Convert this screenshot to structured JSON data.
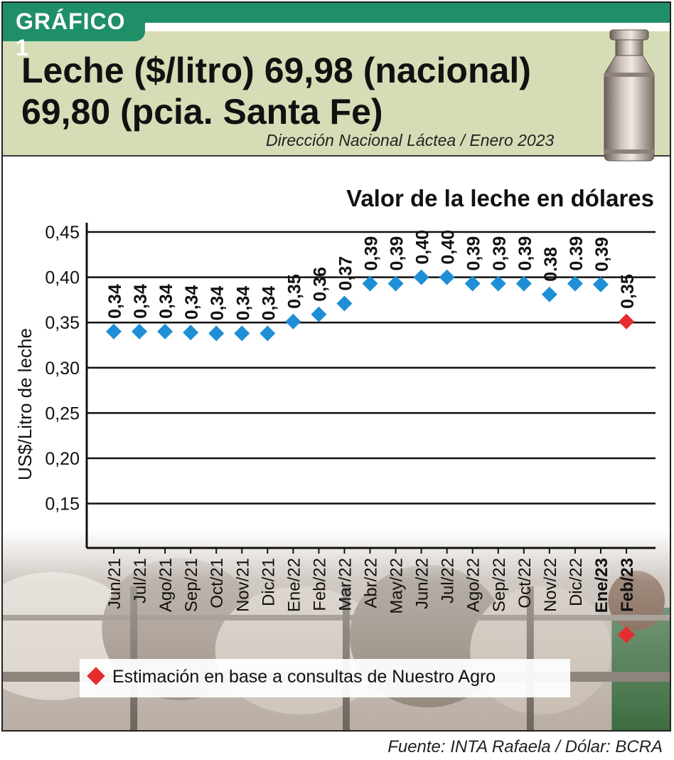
{
  "tag": "GRÁFICO 1",
  "headline_line1": "Leche ($/litro) 69,98 (nacional)",
  "headline_line2": "69,80 (pcia. Santa Fe)",
  "subtitle": "Dirección Nacional Láctea / Enero 2023",
  "source": "Fuente: INTA Rafaela / Dólar: BCRA",
  "colors": {
    "header_bg": "#d6ddb6",
    "accent_green": "#1f8f68",
    "point_blue": "#1e8fd6",
    "estimate_red": "#e52d2d"
  },
  "chart_data": {
    "type": "scatter",
    "title": "Valor de la leche en dólares",
    "ylabel": "US$/Litro de leche",
    "xlabel": "",
    "ylim": [
      0.1,
      0.45
    ],
    "grid": true,
    "y_ticks": [
      "0,45",
      "0,40",
      "0,35",
      "0,30",
      "0,25",
      "0,20",
      "0,15"
    ],
    "y_tick_values": [
      0.45,
      0.4,
      0.35,
      0.3,
      0.25,
      0.2,
      0.15
    ],
    "categories": [
      "Jun/21",
      "Jul/21",
      "Ago/21",
      "Sep/21",
      "Oct/21",
      "Nov/21",
      "Dic/21",
      "Ene/22",
      "Feb/22",
      "Mar/22",
      "Abr/22",
      "May/22",
      "Jun/22",
      "Jul/22",
      "Ago/22",
      "Sep/22",
      "Oct/22",
      "Nov/22",
      "Dic/22",
      "Ene/23",
      "Feb/23"
    ],
    "values": [
      0.34,
      0.34,
      0.34,
      0.339,
      0.338,
      0.338,
      0.338,
      0.351,
      0.359,
      0.371,
      0.393,
      0.393,
      0.4,
      0.4,
      0.393,
      0.393,
      0.393,
      0.381,
      0.393,
      0.392,
      0.351
    ],
    "labels": [
      "0,34",
      "0,34",
      "0,34",
      "0,34",
      "0,34",
      "0,34",
      "0,34",
      "0,35",
      "0,36",
      "0,37",
      "0,39",
      "0,39",
      "0,40",
      "0,40",
      "0,39",
      "0,39",
      "0,39",
      "0.38",
      "0.39",
      "0,39",
      "0,35"
    ],
    "estimated": [
      false,
      false,
      false,
      false,
      false,
      false,
      false,
      false,
      false,
      false,
      false,
      false,
      false,
      false,
      false,
      false,
      false,
      false,
      false,
      false,
      true
    ],
    "bold_categories": [
      "Ene/23",
      "Feb/23"
    ],
    "legend": "Estimación en base a consultas de Nuestro Agro"
  }
}
